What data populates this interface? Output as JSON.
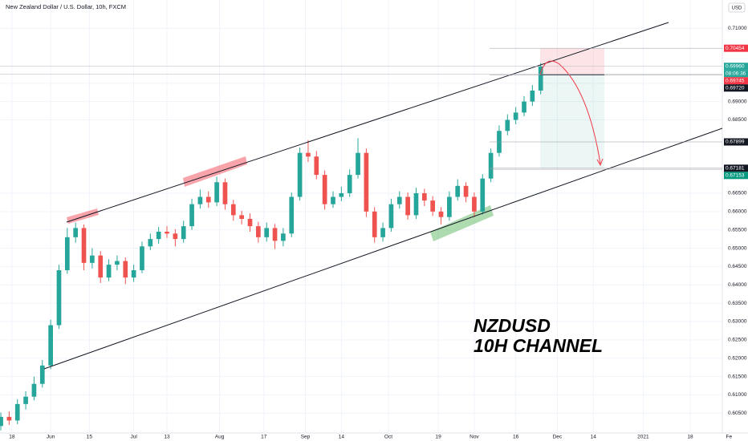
{
  "chart_data": {
    "type": "candlestick",
    "title": "New Zealand Dollar / U.S. Dollar, 10h, FXCM",
    "currency": "USD",
    "annotation": [
      "NZDUSD",
      "10H CHANNEL"
    ],
    "up_color": "#26a69a",
    "down_color": "#ef5350",
    "x": [
      135,
      138,
      141,
      144,
      147,
      150,
      153,
      156,
      159,
      162,
      165,
      168,
      171,
      174,
      177,
      180,
      183,
      186,
      189,
      192,
      195,
      198,
      201,
      204,
      207,
      210,
      213,
      216,
      219,
      222,
      225,
      228,
      231,
      234,
      237,
      240,
      243,
      246,
      249,
      252,
      255,
      258,
      261,
      264,
      267,
      270,
      273,
      276,
      279,
      282,
      285,
      288,
      291,
      294,
      297,
      300,
      303,
      306,
      309,
      312,
      315,
      318,
      321,
      324,
      327,
      330
    ],
    "open": [
      0.6015,
      0.604,
      0.603,
      0.6075,
      0.6095,
      0.613,
      0.618,
      0.629,
      0.644,
      0.653,
      0.6555,
      0.646,
      0.648,
      0.642,
      0.6455,
      0.6465,
      0.642,
      0.644,
      0.6505,
      0.6525,
      0.6545,
      0.654,
      0.6525,
      0.656,
      0.662,
      0.664,
      0.6625,
      0.668,
      0.662,
      0.659,
      0.658,
      0.656,
      0.653,
      0.6555,
      0.652,
      0.654,
      0.664,
      0.676,
      0.675,
      0.67,
      0.662,
      0.664,
      0.665,
      0.67,
      0.676,
      0.66,
      0.653,
      0.6555,
      0.662,
      0.664,
      0.659,
      0.665,
      0.663,
      0.66,
      0.6585,
      0.664,
      0.667,
      0.664,
      0.66,
      0.669,
      0.676,
      0.682,
      0.685,
      0.687,
      0.69,
      0.693
    ],
    "high": [
      0.6052,
      0.6055,
      0.6088,
      0.611,
      0.615,
      0.6195,
      0.6305,
      0.6455,
      0.6555,
      0.657,
      0.6565,
      0.65,
      0.6492,
      0.647,
      0.648,
      0.6475,
      0.6455,
      0.6518,
      0.654,
      0.6558,
      0.656,
      0.6552,
      0.6575,
      0.6635,
      0.666,
      0.6655,
      0.6695,
      0.669,
      0.6632,
      0.6602,
      0.6595,
      0.6572,
      0.657,
      0.6566,
      0.6555,
      0.6652,
      0.6775,
      0.6795,
      0.6765,
      0.6712,
      0.6655,
      0.6668,
      0.6715,
      0.68,
      0.6772,
      0.6612,
      0.657,
      0.6635,
      0.6655,
      0.6652,
      0.6665,
      0.6662,
      0.6642,
      0.6612,
      0.6655,
      0.6688,
      0.668,
      0.6652,
      0.6702,
      0.6772,
      0.6835,
      0.6865,
      0.6885,
      0.6915,
      0.6945,
      0.7005
    ],
    "low": [
      0.6003,
      0.6018,
      0.602,
      0.606,
      0.6085,
      0.612,
      0.617,
      0.628,
      0.643,
      0.6515,
      0.644,
      0.6445,
      0.6405,
      0.641,
      0.644,
      0.6402,
      0.6408,
      0.6432,
      0.6495,
      0.6512,
      0.6528,
      0.6505,
      0.6515,
      0.655,
      0.6608,
      0.661,
      0.6615,
      0.6605,
      0.6575,
      0.6565,
      0.6545,
      0.6515,
      0.6518,
      0.6498,
      0.6505,
      0.653,
      0.663,
      0.6735,
      0.6688,
      0.6605,
      0.661,
      0.6628,
      0.664,
      0.669,
      0.6585,
      0.6515,
      0.6518,
      0.6545,
      0.6608,
      0.6578,
      0.658,
      0.6615,
      0.6588,
      0.6565,
      0.6575,
      0.663,
      0.6625,
      0.6585,
      0.6592,
      0.668,
      0.675,
      0.6808,
      0.6838,
      0.686,
      0.6888,
      0.692
    ],
    "close": [
      0.604,
      0.603,
      0.6075,
      0.6095,
      0.613,
      0.618,
      0.629,
      0.644,
      0.653,
      0.6555,
      0.646,
      0.648,
      0.642,
      0.6455,
      0.6465,
      0.642,
      0.644,
      0.6505,
      0.6525,
      0.6545,
      0.654,
      0.6525,
      0.656,
      0.662,
      0.664,
      0.6625,
      0.668,
      0.662,
      0.659,
      0.658,
      0.656,
      0.653,
      0.6555,
      0.652,
      0.654,
      0.664,
      0.676,
      0.675,
      0.67,
      0.662,
      0.664,
      0.665,
      0.67,
      0.676,
      0.66,
      0.653,
      0.6555,
      0.662,
      0.664,
      0.659,
      0.665,
      0.663,
      0.66,
      0.6585,
      0.664,
      0.667,
      0.664,
      0.66,
      0.669,
      0.676,
      0.682,
      0.685,
      0.687,
      0.69,
      0.693,
      0.6996
    ],
    "xlim": [
      134.7,
      395.6
    ],
    "ylim": [
      0.5996,
      0.7177
    ],
    "xticks": [
      {
        "value": 139,
        "label": "18"
      },
      {
        "value": 153,
        "label": "Jun"
      },
      {
        "value": 167,
        "label": "15"
      },
      {
        "value": 183,
        "label": "Jul"
      },
      {
        "value": 195,
        "label": "13"
      },
      {
        "value": 214,
        "label": "Aug"
      },
      {
        "value": 230,
        "label": "17"
      },
      {
        "value": 245,
        "label": "Sep"
      },
      {
        "value": 258,
        "label": "14"
      },
      {
        "value": 275,
        "label": "Oct"
      },
      {
        "value": 293,
        "label": "19"
      },
      {
        "value": 306,
        "label": "Nov"
      },
      {
        "value": 321,
        "label": "16"
      },
      {
        "value": 336,
        "label": "Dec"
      },
      {
        "value": 349,
        "label": "14"
      },
      {
        "value": 367,
        "label": "2021"
      },
      {
        "value": 384,
        "label": "18"
      },
      {
        "value": 398,
        "label": "Fe"
      }
    ],
    "yticks": [
      {
        "value": 0.71,
        "label": "0.71000"
      },
      {
        "value": 0.695,
        "label": "0.69500"
      },
      {
        "value": 0.69,
        "label": "0.69000"
      },
      {
        "value": 0.685,
        "label": "0.68500"
      },
      {
        "value": 0.665,
        "label": "0.66500"
      },
      {
        "value": 0.66,
        "label": "0.66000"
      },
      {
        "value": 0.655,
        "label": "0.65500"
      },
      {
        "value": 0.65,
        "label": "0.65000"
      },
      {
        "value": 0.645,
        "label": "0.64500"
      },
      {
        "value": 0.64,
        "label": "0.64000"
      },
      {
        "value": 0.635,
        "label": "0.63500"
      },
      {
        "value": 0.63,
        "label": "0.63000"
      },
      {
        "value": 0.625,
        "label": "0.62500"
      },
      {
        "value": 0.62,
        "label": "0.62000"
      },
      {
        "value": 0.615,
        "label": "0.61500"
      },
      {
        "value": 0.61,
        "label": "0.61000"
      },
      {
        "value": 0.605,
        "label": "0.60500"
      }
    ],
    "price_labels": [
      {
        "value": 0.70454,
        "label": "0.70454",
        "color": "#f23645"
      },
      {
        "value": 0.6996,
        "label": "0.69960",
        "color": "#26a69a",
        "countdown": "08:06:36"
      },
      {
        "value": 0.69745,
        "label": "0.69745",
        "color": "#f23645"
      },
      {
        "value": 0.6972,
        "label": "0.69720",
        "color": "#131722"
      },
      {
        "value": 0.67899,
        "label": "0.67899",
        "color": "#131722"
      },
      {
        "value": 0.67181,
        "label": "0.67181",
        "color": "#131722"
      },
      {
        "value": 0.67153,
        "label": "0.67153",
        "color": "#089981"
      }
    ]
  }
}
